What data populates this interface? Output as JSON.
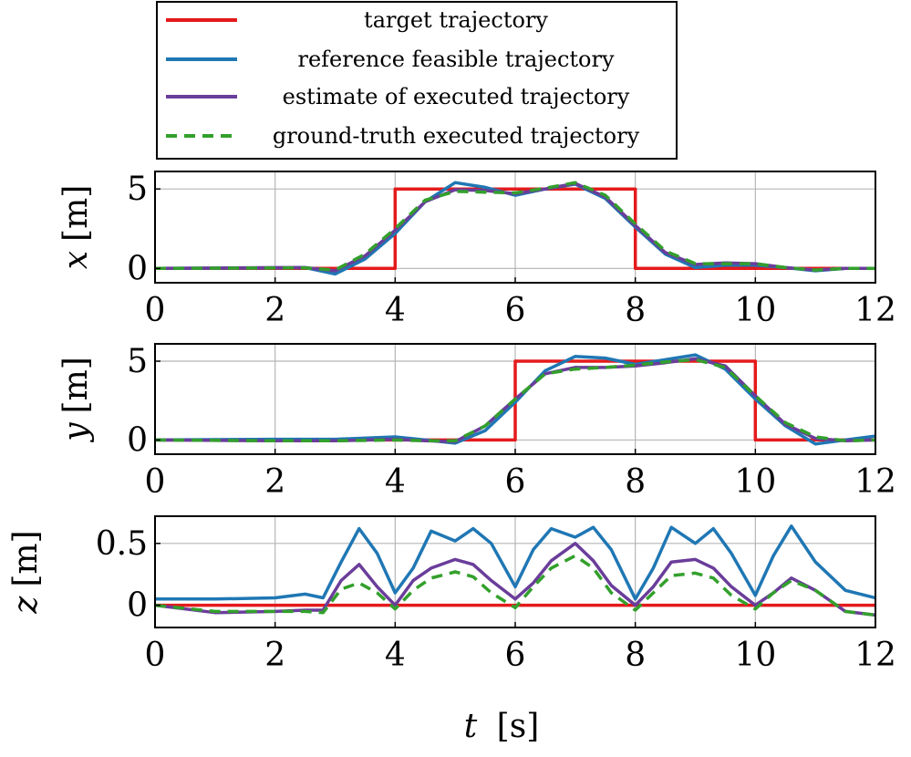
{
  "legend": {
    "entries": [
      {
        "label": "target trajectory",
        "color": "#e41a1c",
        "dash": "solid"
      },
      {
        "label": "reference feasible trajectory",
        "color": "#1f77b4",
        "dash": "solid"
      },
      {
        "label": "estimate of executed trajectory",
        "color": "#6a3d9a",
        "dash": "solid"
      },
      {
        "label": "ground-truth executed trajectory",
        "color": "#33a02c",
        "dash": "dashed"
      }
    ],
    "placement": "top-left"
  },
  "xlabel": {
    "var": "t",
    "unit": "[s]"
  },
  "chart_data": [
    {
      "type": "line",
      "ylabel": {
        "var": "x",
        "unit": "[m]"
      },
      "xlim": [
        0,
        12
      ],
      "ylim": [
        -0.9,
        6.1
      ],
      "xticks": [
        "0",
        "2",
        "4",
        "6",
        "8",
        "10",
        "12"
      ],
      "yticks": [
        {
          "v": 0,
          "label": "0"
        },
        {
          "v": 5,
          "label": "5"
        }
      ],
      "grid": true,
      "series": [
        {
          "name": "target trajectory",
          "x": [
            0,
            4,
            4,
            8,
            8,
            12
          ],
          "y": [
            0,
            0,
            5,
            5,
            0,
            0
          ]
        },
        {
          "name": "reference feasible trajectory",
          "x": [
            0,
            2,
            2.5,
            3,
            3.5,
            4,
            4.5,
            5,
            5.5,
            6,
            6.5,
            7,
            7.5,
            8,
            8.5,
            9,
            9.5,
            10,
            10.5,
            11,
            11.5,
            12
          ],
          "y": [
            0,
            0.03,
            0.05,
            -0.35,
            0.6,
            2.2,
            4.2,
            5.4,
            5.1,
            4.6,
            5.0,
            5.3,
            4.4,
            2.6,
            0.9,
            0.05,
            0.2,
            0.2,
            0.05,
            -0.15,
            0,
            0
          ]
        },
        {
          "name": "estimate of executed trajectory",
          "x": [
            0,
            2,
            2.5,
            3,
            3.5,
            4,
            4.5,
            5,
            5.5,
            6,
            6.5,
            7,
            7.5,
            8,
            8.5,
            9,
            9.5,
            10,
            10.5,
            11,
            11.5,
            12
          ],
          "y": [
            0,
            0.05,
            0.05,
            -0.15,
            0.8,
            2.4,
            4.2,
            4.95,
            4.9,
            4.7,
            5.0,
            5.35,
            4.5,
            2.7,
            1.0,
            0.25,
            0.35,
            0.3,
            0.05,
            -0.1,
            0,
            0
          ]
        },
        {
          "name": "ground-truth executed trajectory",
          "x": [
            0,
            2,
            2.5,
            3,
            3.5,
            4,
            4.5,
            5,
            5.5,
            6,
            6.5,
            7,
            7.5,
            8,
            8.5,
            9,
            9.5,
            10,
            10.5,
            11,
            11.5,
            12
          ],
          "y": [
            0,
            0.03,
            0.03,
            -0.1,
            0.9,
            2.5,
            4.3,
            4.85,
            4.8,
            4.75,
            5.05,
            5.4,
            4.6,
            2.8,
            1.1,
            0.3,
            0.3,
            0.3,
            0.05,
            -0.1,
            0,
            0
          ]
        }
      ]
    },
    {
      "type": "line",
      "ylabel": {
        "var": "y",
        "unit": "[m]"
      },
      "xlim": [
        0,
        12
      ],
      "ylim": [
        -0.9,
        6.1
      ],
      "xticks": [
        "0",
        "2",
        "4",
        "6",
        "8",
        "10",
        "12"
      ],
      "yticks": [
        {
          "v": 0,
          "label": "0"
        },
        {
          "v": 5,
          "label": "5"
        }
      ],
      "grid": true,
      "series": [
        {
          "name": "target trajectory",
          "x": [
            0,
            6,
            6,
            10,
            10,
            12
          ],
          "y": [
            0,
            0,
            5,
            5,
            0,
            0
          ]
        },
        {
          "name": "reference feasible trajectory",
          "x": [
            0,
            2,
            3,
            4,
            4.5,
            5,
            5.5,
            6,
            6.5,
            7,
            7.5,
            8,
            8.5,
            9,
            9.5,
            10,
            10.5,
            11,
            11.5,
            12
          ],
          "y": [
            0,
            0.05,
            0.05,
            0.2,
            0,
            -0.2,
            0.6,
            2.4,
            4.4,
            5.3,
            5.2,
            4.8,
            5.1,
            5.4,
            4.5,
            2.6,
            0.9,
            -0.25,
            0,
            0.25
          ]
        },
        {
          "name": "estimate of executed trajectory",
          "x": [
            0,
            2,
            3,
            4,
            4.5,
            5,
            5.5,
            6,
            6.5,
            7,
            7.5,
            8,
            8.5,
            9,
            9.5,
            10,
            10.5,
            11,
            11.5,
            12
          ],
          "y": [
            0,
            -0.05,
            -0.05,
            0.05,
            -0.05,
            -0.1,
            0.9,
            2.6,
            4.2,
            4.6,
            4.6,
            4.7,
            4.9,
            5.15,
            4.7,
            2.8,
            1.0,
            0.1,
            -0.05,
            0
          ]
        },
        {
          "name": "ground-truth executed trajectory",
          "x": [
            0,
            2,
            3,
            4,
            4.5,
            5,
            5.5,
            6,
            6.5,
            7,
            7.5,
            8,
            8.5,
            9,
            9.5,
            10,
            10.5,
            11,
            11.5,
            12
          ],
          "y": [
            0,
            -0.05,
            -0.05,
            0,
            -0.05,
            -0.05,
            0.9,
            2.6,
            4.2,
            4.5,
            4.6,
            4.75,
            4.95,
            5.1,
            4.6,
            2.8,
            1.1,
            0.2,
            -0.05,
            0
          ]
        }
      ]
    },
    {
      "type": "line",
      "ylabel": {
        "var": "z",
        "unit": "[m]"
      },
      "xlim": [
        0,
        12
      ],
      "ylim": [
        -0.18,
        0.72
      ],
      "xticks": [
        "0",
        "2",
        "4",
        "6",
        "8",
        "10",
        "12"
      ],
      "yticks": [
        {
          "v": 0,
          "label": "0"
        },
        {
          "v": 0.5,
          "label": "0.5"
        }
      ],
      "grid": true,
      "series": [
        {
          "name": "target trajectory",
          "x": [
            0,
            12
          ],
          "y": [
            0,
            0
          ]
        },
        {
          "name": "reference feasible trajectory",
          "x": [
            0,
            1,
            2,
            2.5,
            2.8,
            3.1,
            3.4,
            3.7,
            4.0,
            4.3,
            4.6,
            5.0,
            5.3,
            5.6,
            6.0,
            6.3,
            6.6,
            7.0,
            7.3,
            7.6,
            8.0,
            8.3,
            8.6,
            9.0,
            9.3,
            9.6,
            10.0,
            10.3,
            10.6,
            11.0,
            11.5,
            12
          ],
          "y": [
            0.05,
            0.05,
            0.06,
            0.09,
            0.06,
            0.35,
            0.62,
            0.42,
            0.1,
            0.3,
            0.6,
            0.52,
            0.62,
            0.5,
            0.15,
            0.45,
            0.62,
            0.55,
            0.63,
            0.45,
            0.05,
            0.3,
            0.63,
            0.5,
            0.62,
            0.42,
            0.08,
            0.4,
            0.64,
            0.35,
            0.12,
            0.06
          ]
        },
        {
          "name": "estimate of executed trajectory",
          "x": [
            0,
            1,
            2,
            2.5,
            2.8,
            3.1,
            3.4,
            3.7,
            4.0,
            4.3,
            4.6,
            5.0,
            5.3,
            5.6,
            6.0,
            6.3,
            6.6,
            7.0,
            7.3,
            7.6,
            8.0,
            8.3,
            8.6,
            9.0,
            9.3,
            9.6,
            10.0,
            10.3,
            10.6,
            11.0,
            11.5,
            12
          ],
          "y": [
            0.0,
            -0.06,
            -0.05,
            -0.04,
            -0.04,
            0.2,
            0.33,
            0.15,
            0.0,
            0.2,
            0.3,
            0.37,
            0.33,
            0.2,
            0.05,
            0.18,
            0.36,
            0.5,
            0.36,
            0.16,
            0.0,
            0.15,
            0.35,
            0.37,
            0.3,
            0.15,
            0.0,
            0.1,
            0.22,
            0.12,
            -0.05,
            -0.08
          ]
        },
        {
          "name": "ground-truth executed trajectory",
          "x": [
            0,
            1,
            2,
            2.5,
            2.8,
            3.1,
            3.4,
            3.7,
            4.0,
            4.3,
            4.6,
            5.0,
            5.3,
            5.6,
            6.0,
            6.3,
            6.6,
            7.0,
            7.3,
            7.6,
            8.0,
            8.3,
            8.6,
            9.0,
            9.3,
            9.6,
            10.0,
            10.3,
            10.6,
            11.0,
            11.5,
            12
          ],
          "y": [
            0.0,
            -0.05,
            -0.05,
            -0.05,
            -0.06,
            0.13,
            0.18,
            0.1,
            -0.03,
            0.12,
            0.22,
            0.27,
            0.23,
            0.1,
            -0.02,
            0.15,
            0.3,
            0.4,
            0.3,
            0.1,
            -0.04,
            0.1,
            0.24,
            0.26,
            0.22,
            0.08,
            -0.03,
            0.1,
            0.2,
            0.12,
            -0.05,
            -0.08
          ]
        }
      ]
    }
  ]
}
